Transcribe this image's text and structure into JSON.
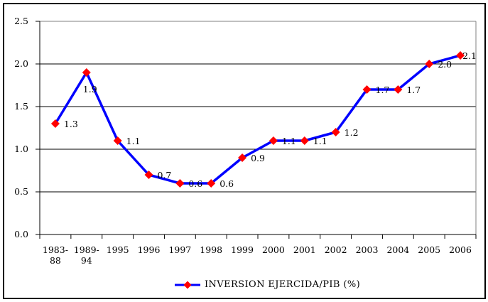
{
  "chart_data": {
    "type": "line",
    "title": "",
    "categories": [
      "1983-88",
      "1989-94",
      "1995",
      "1996",
      "1997",
      "1998",
      "1999",
      "2000",
      "2001",
      "2002",
      "2003",
      "2004",
      "2005",
      "2006"
    ],
    "values": [
      1.3,
      1.9,
      1.1,
      0.7,
      0.6,
      0.6,
      0.9,
      1.1,
      1.1,
      1.2,
      1.7,
      1.7,
      2.0,
      2.1
    ],
    "point_labels": [
      "1.3",
      "1.9",
      "1.1",
      "0.7",
      "0.6",
      "0.6",
      "0.9",
      "1.1",
      "1.1",
      "1.2",
      "1.7",
      "1.7",
      "2.0",
      "2.1"
    ],
    "series": [
      {
        "name": "INVERSION EJERCIDA/PIB (%)",
        "line_color": "#0000ff",
        "marker": "diamond",
        "marker_color": "#ff0000"
      }
    ],
    "legend": {
      "label": "INVERSION EJERCIDA/PIB (%)",
      "position": "bottom-center"
    },
    "xlabel": "",
    "ylabel": "",
    "ylim": [
      0.0,
      2.5
    ],
    "yticks": [
      "0.0",
      "0.5",
      "1.0",
      "1.5",
      "2.0",
      "2.5"
    ],
    "grid": "horizontal",
    "axis_color": "#000000",
    "gridline_color": "#000000",
    "plot_border_color": "#808080",
    "frame_border_color": "#000000",
    "text_color": "#000000",
    "background_color": "#ffffff"
  }
}
